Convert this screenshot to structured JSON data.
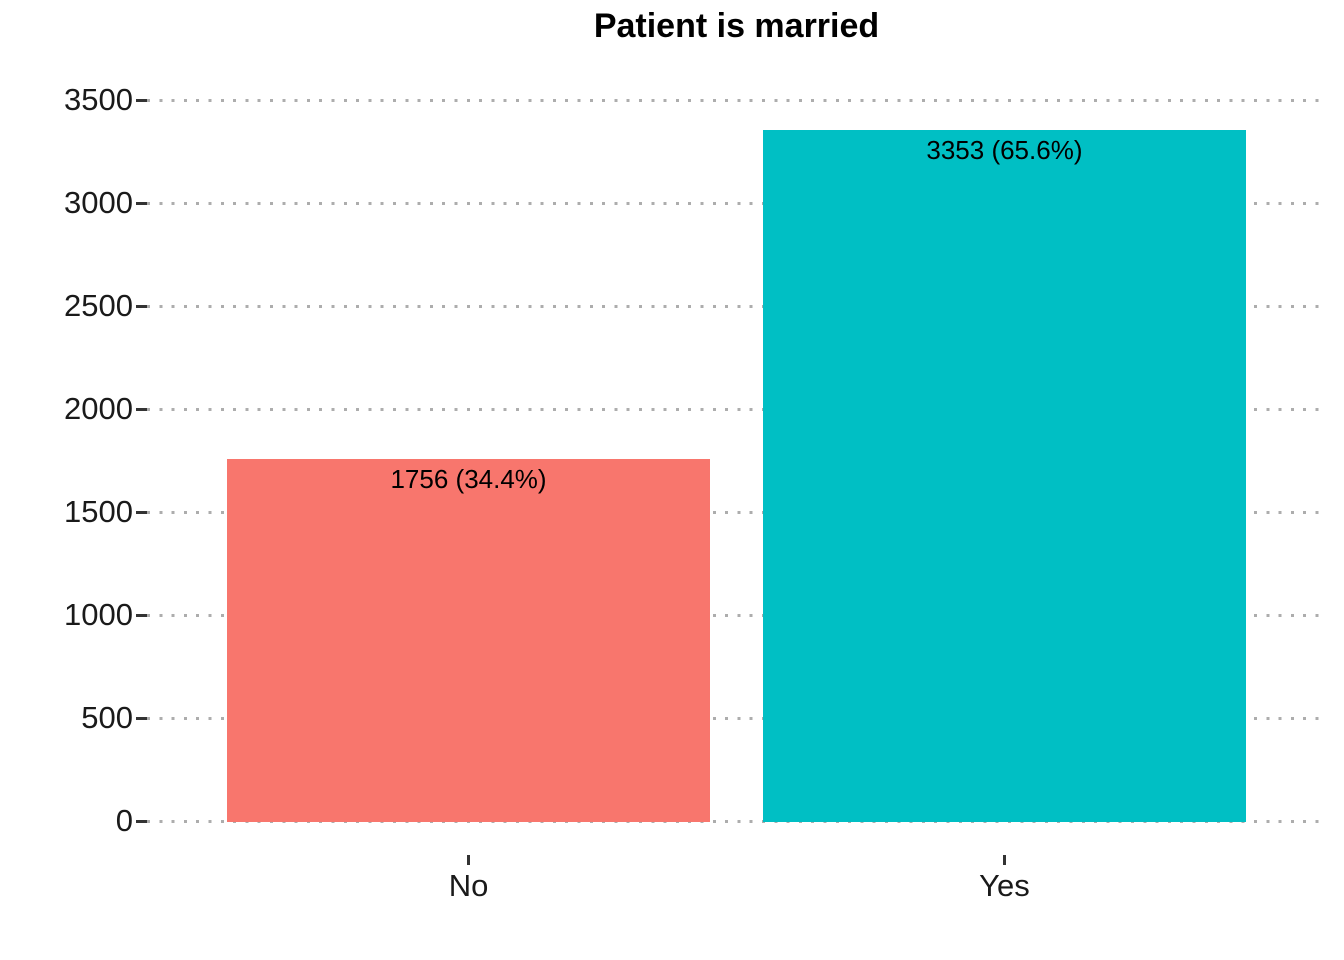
{
  "chart_data": {
    "type": "bar",
    "title": "Patient is married",
    "categories": [
      "No",
      "Yes"
    ],
    "values": [
      1756,
      3353
    ],
    "bar_labels": [
      "1756 (34.4%)",
      "3353 (65.6%)"
    ],
    "bar_colors": [
      "#F8766D",
      "#00BFC4"
    ],
    "xlabel": "",
    "ylabel": "",
    "ylim": [
      0,
      3500
    ],
    "yticks": [
      0,
      500,
      1000,
      1500,
      2000,
      2500,
      3000,
      3500
    ],
    "grid": "horizontal dotted",
    "legend": "none",
    "colors": {
      "background": "#FFFFFF",
      "gridline": "#ADADAD",
      "tick_mark": "#333333",
      "axis_text": "#1A1A1A",
      "title_text": "#000000",
      "bar_label_text": "#000000"
    }
  }
}
